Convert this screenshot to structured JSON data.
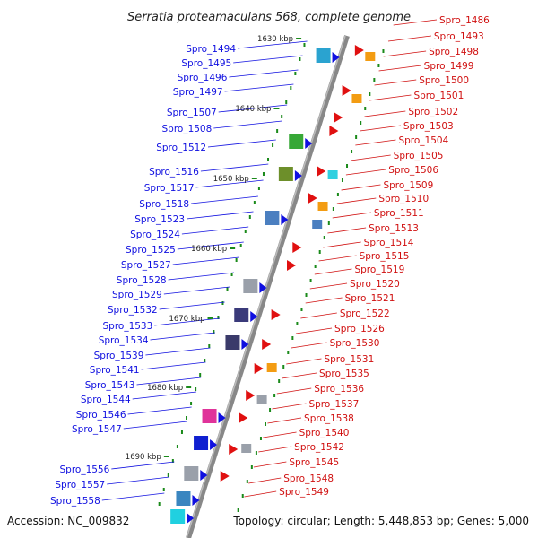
{
  "title": "Serratia proteamaculans 568, complete genome",
  "footer": {
    "accession": "Accession: NC_009832",
    "topology": "Topology: circular; Length: 5,448,853 bp; Genes: 5,000"
  },
  "colors": {
    "left_label": "#1010e0",
    "right_label": "#d01010",
    "backbone": "#888888",
    "tick": "#1a8a1a"
  },
  "kbp_labels": [
    "1630 kbp",
    "1640 kbp",
    "1650 kbp",
    "1660 kbp",
    "1670 kbp",
    "1680 kbp",
    "1690 kbp"
  ],
  "left_labels": [
    "Spro_1494",
    "Spro_1495",
    "Spro_1496",
    "Spro_1497",
    "Spro_1507",
    "Spro_1508",
    "Spro_1512",
    "Spro_1516",
    "Spro_1517",
    "Spro_1518",
    "Spro_1523",
    "Spro_1524",
    "Spro_1525",
    "Spro_1527",
    "Spro_1528",
    "Spro_1529",
    "Spro_1532",
    "Spro_1533",
    "Spro_1534",
    "Spro_1539",
    "Spro_1541",
    "Spro_1543",
    "Spro_1544",
    "Spro_1546",
    "Spro_1547",
    "Spro_1556",
    "Spro_1557",
    "Spro_1558"
  ],
  "right_labels": [
    "Spro_1486",
    "Spro_1493",
    "Spro_1498",
    "Spro_1499",
    "Spro_1500",
    "Spro_1501",
    "Spro_1502",
    "Spro_1503",
    "Spro_1504",
    "Spro_1505",
    "Spro_1506",
    "Spro_1509",
    "Spro_1510",
    "Spro_1511",
    "Spro_1513",
    "Spro_1514",
    "Spro_1515",
    "Spro_1519",
    "Spro_1520",
    "Spro_1521",
    "Spro_1522",
    "Spro_1526",
    "Spro_1530",
    "Spro_1531",
    "Spro_1535",
    "Spro_1536",
    "Spro_1537",
    "Spro_1538",
    "Spro_1540",
    "Spro_1542",
    "Spro_1545",
    "Spro_1548",
    "Spro_1549"
  ]
}
